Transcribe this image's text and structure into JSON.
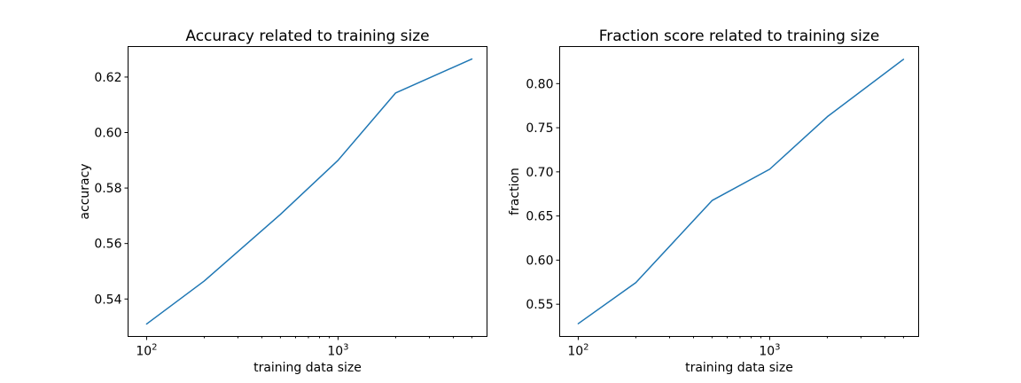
{
  "chart_data": [
    {
      "type": "line",
      "title": "Accuracy related to training size",
      "xlabel": "training data size",
      "ylabel": "accuracy",
      "xscale": "log",
      "grid": false,
      "xlim": [
        80,
        6000
      ],
      "ylim": [
        0.5265,
        0.631
      ],
      "xticks": [
        {
          "value": 100,
          "base": "10",
          "exp": "2"
        },
        {
          "value": 1000,
          "base": "10",
          "exp": "3"
        }
      ],
      "yticks": [
        {
          "value": 0.54,
          "label": "0.54"
        },
        {
          "value": 0.56,
          "label": "0.56"
        },
        {
          "value": 0.58,
          "label": "0.58"
        },
        {
          "value": 0.6,
          "label": "0.60"
        },
        {
          "value": 0.62,
          "label": "0.62"
        }
      ],
      "series": [
        {
          "color": "#1f77b4",
          "x": [
            100,
            200,
            500,
            1000,
            2000,
            5000
          ],
          "y": [
            0.531,
            0.5465,
            0.5705,
            0.59,
            0.6143,
            0.6265
          ]
        }
      ]
    },
    {
      "type": "line",
      "title": "Fraction score related to training size",
      "xlabel": "training data size",
      "ylabel": "fraction",
      "xscale": "log",
      "grid": false,
      "xlim": [
        80,
        6000
      ],
      "ylim": [
        0.5135,
        0.842
      ],
      "xticks": [
        {
          "value": 100,
          "base": "10",
          "exp": "2"
        },
        {
          "value": 1000,
          "base": "10",
          "exp": "3"
        }
      ],
      "yticks": [
        {
          "value": 0.55,
          "label": "0.55"
        },
        {
          "value": 0.6,
          "label": "0.60"
        },
        {
          "value": 0.65,
          "label": "0.65"
        },
        {
          "value": 0.7,
          "label": "0.70"
        },
        {
          "value": 0.75,
          "label": "0.75"
        },
        {
          "value": 0.8,
          "label": "0.80"
        }
      ],
      "series": [
        {
          "color": "#1f77b4",
          "x": [
            100,
            200,
            500,
            1000,
            2000,
            5000
          ],
          "y": [
            0.528,
            0.5745,
            0.6675,
            0.703,
            0.7625,
            0.8275
          ]
        }
      ]
    }
  ]
}
